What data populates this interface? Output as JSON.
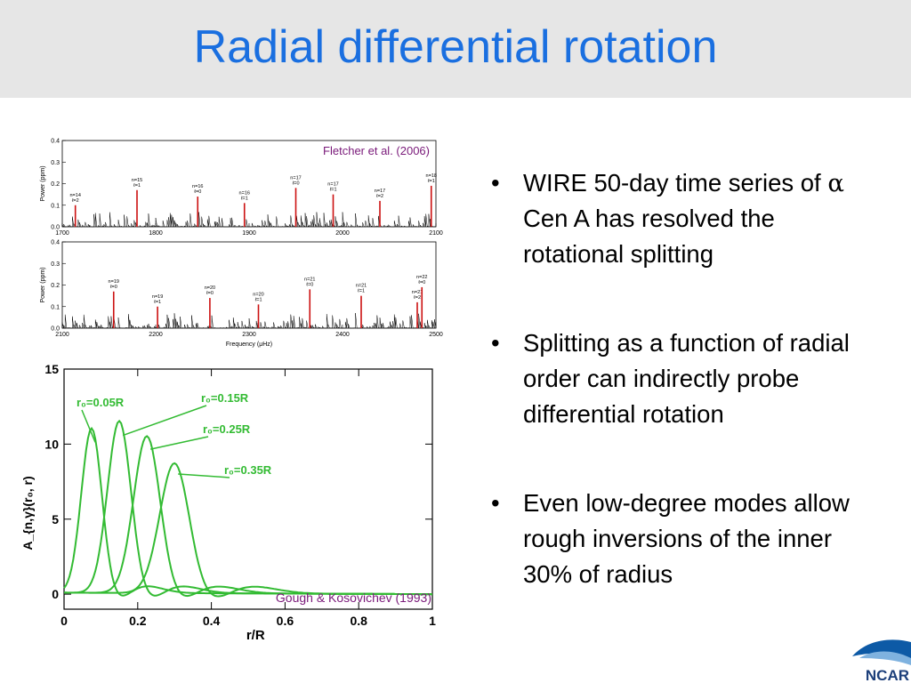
{
  "slide": {
    "title": "Radial differential rotation",
    "bullets": [
      {
        "pre": "WIRE 50-day time series of ",
        "symbol": "α",
        "post": " Cen A has resolved the rotational splitting"
      },
      {
        "pre": "Splitting as a function of radial order can indirectly probe differential rotation",
        "symbol": "",
        "post": ""
      },
      {
        "pre": "Even low-degree modes allow rough inversions of the inner 30% of radius",
        "symbol": "",
        "post": ""
      }
    ],
    "bullet_char": "•",
    "logo_text": "NCAR"
  },
  "chart_data": [
    {
      "type": "line",
      "caption": "Fletcher et al. (2006)",
      "panels": [
        {
          "ylabel": "Power (ppm)",
          "xlim": [
            1700,
            2100
          ],
          "ylim": [
            0,
            0.4
          ],
          "yticks": [
            "0.0",
            "0.1",
            "0.2",
            "0.3",
            "0.4"
          ],
          "xticks": [
            "1700",
            "1800",
            "1900",
            "2000",
            "2100"
          ],
          "annotations": [
            {
              "text": "n=14 ℓ=2",
              "x": 1714
            },
            {
              "text": "n=15 ℓ=1",
              "x": 1780
            },
            {
              "text": "n=16 ℓ=0",
              "x": 1845
            },
            {
              "text": "n=16 ℓ=1",
              "x": 1895
            },
            {
              "text": "n=17 ℓ=0",
              "x": 1950
            },
            {
              "text": "n=17 ℓ=1",
              "x": 1990
            },
            {
              "text": "n=17 ℓ=2",
              "x": 2040
            },
            {
              "text": "n=18 ℓ=1",
              "x": 2095
            }
          ]
        },
        {
          "ylabel": "Power (ppm)",
          "xlabel": "Frequency (μHz)",
          "xlim": [
            2100,
            2500
          ],
          "ylim": [
            0,
            0.4
          ],
          "yticks": [
            "0.0",
            "0.1",
            "0.2",
            "0.3",
            "0.4"
          ],
          "xticks": [
            "2100",
            "2200",
            "2300",
            "2400",
            "2500"
          ],
          "annotations": [
            {
              "text": "n=19 ℓ=1",
              "x": 2202
            },
            {
              "text": "n=19 ℓ=0",
              "x": 2155
            },
            {
              "text": "n=20 ℓ=0",
              "x": 2258
            },
            {
              "text": "n=20 ℓ=1",
              "x": 2310
            },
            {
              "text": "n=21 ℓ=0",
              "x": 2365
            },
            {
              "text": "n=21 ℓ=1",
              "x": 2420
            },
            {
              "text": "n=21 ℓ=2",
              "x": 2480
            },
            {
              "text": "n=22 ℓ=0",
              "x": 2485
            }
          ]
        }
      ]
    },
    {
      "type": "line",
      "caption": "Gough & Kosovichev (1993)",
      "xlabel": "r/R",
      "ylabel": "A_{n,γ}(r₀, r)",
      "xlim": [
        0,
        1
      ],
      "ylim": [
        -1,
        15
      ],
      "xticks": [
        "0",
        "0.2",
        "0.4",
        "0.6",
        "0.8",
        "1"
      ],
      "yticks": [
        "0",
        "5",
        "10",
        "15"
      ],
      "series": [
        {
          "name": "r₀=0.05R",
          "r0": 0.075,
          "peak": 11.0
        },
        {
          "name": "r₀=0.15R",
          "r0": 0.15,
          "peak": 11.5
        },
        {
          "name": "r₀=0.25R",
          "r0": 0.225,
          "peak": 10.5
        },
        {
          "name": "r₀=0.35R",
          "r0": 0.3,
          "peak": 8.7
        }
      ],
      "color": "#33bb33"
    }
  ]
}
